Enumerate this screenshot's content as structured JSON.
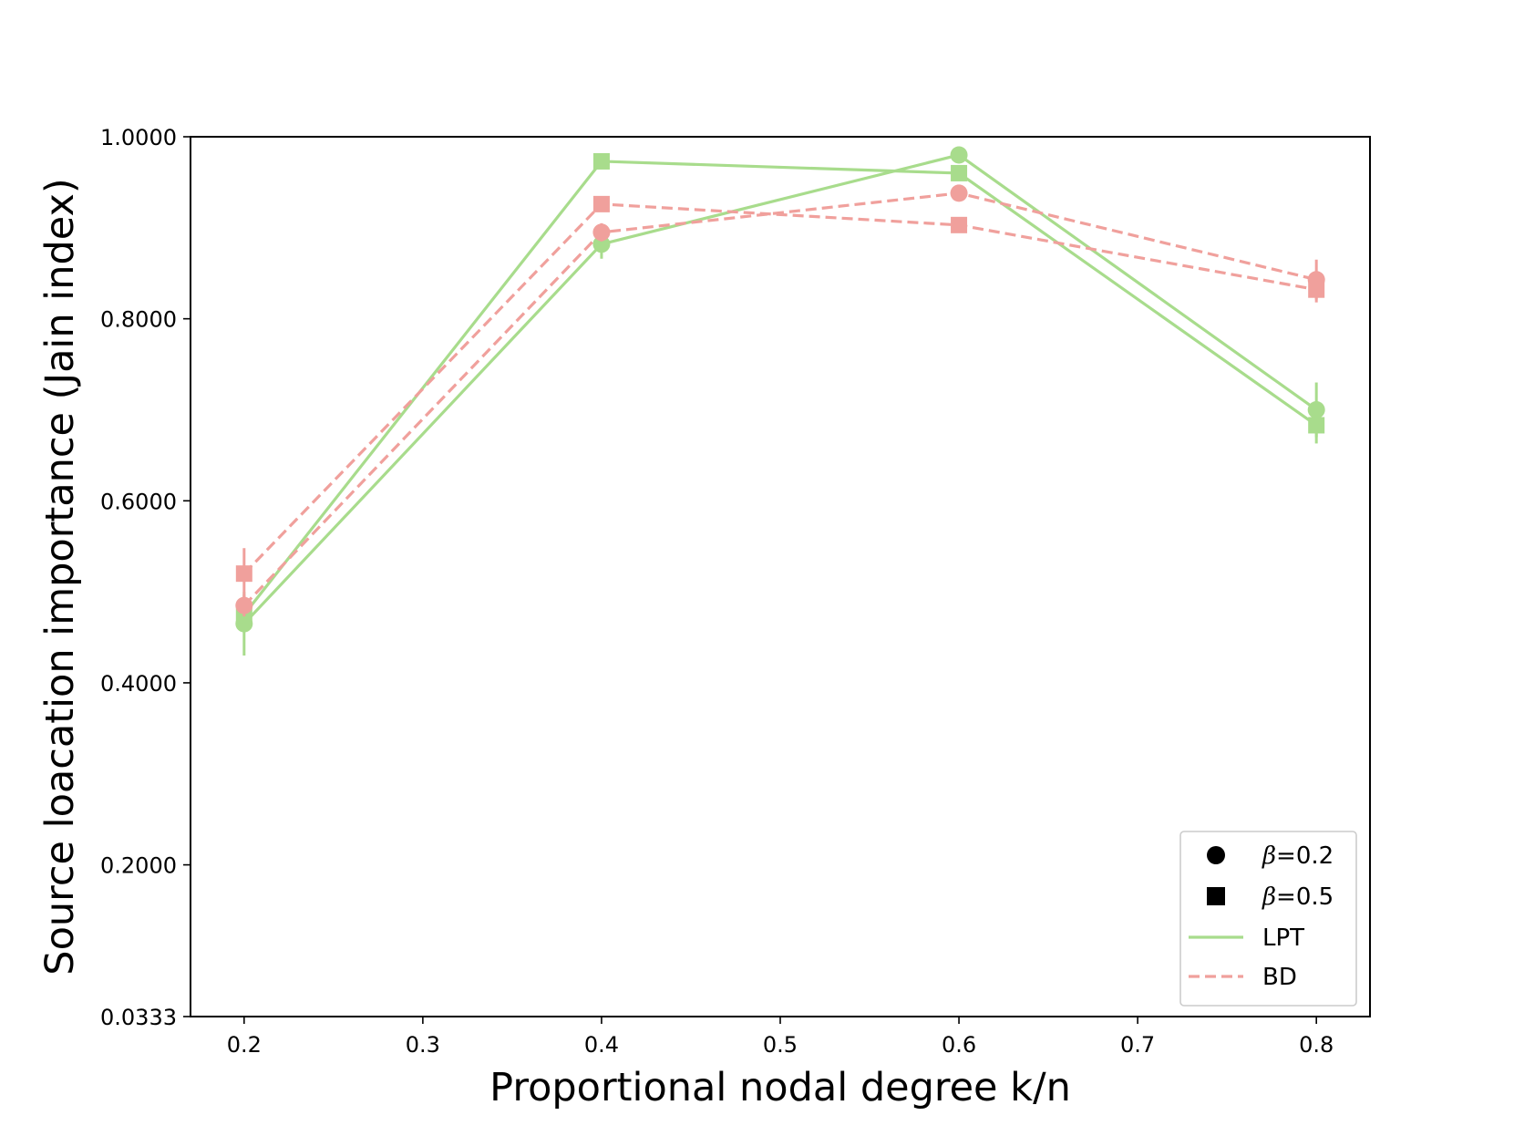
{
  "chart_data": {
    "type": "line",
    "xlabel": "Proportional nodal degree k/n",
    "ylabel": "Source loacation importance (Jain index)",
    "xlim": [
      0.17,
      0.83
    ],
    "ylim": [
      0.0333,
      1.0
    ],
    "xticks": [
      0.2,
      0.3,
      0.4,
      0.5,
      0.6,
      0.7,
      0.8
    ],
    "xtick_labels": [
      "0.2",
      "0.3",
      "0.4",
      "0.5",
      "0.6",
      "0.7",
      "0.8"
    ],
    "yticks": [
      0.0333,
      0.2,
      0.4,
      0.6,
      0.8,
      1.0
    ],
    "ytick_labels": [
      "0.0333",
      "0.2000",
      "0.4000",
      "0.6000",
      "0.8000",
      "1.0000"
    ],
    "grid": false,
    "legend_position": "bottom-right",
    "legend": [
      {
        "label_prefix": "β",
        "label_suffix": "=0.2",
        "kind": "marker",
        "marker": "circle"
      },
      {
        "label_prefix": "β",
        "label_suffix": "=0.5",
        "kind": "marker",
        "marker": "square"
      },
      {
        "label": "LPT",
        "kind": "line",
        "style": "solid"
      },
      {
        "label": "BD",
        "kind": "line",
        "style": "dashed"
      }
    ],
    "colors": {
      "LPT": "#a8dc8c",
      "BD": "#f0a09c"
    },
    "x": [
      0.2,
      0.4,
      0.6,
      0.8
    ],
    "series": [
      {
        "method": "LPT",
        "beta": "0.2",
        "marker": "circle",
        "style": "solid",
        "values": [
          0.465,
          0.882,
          0.98,
          0.7
        ],
        "errors": [
          0.035,
          0.016,
          0.005,
          0.03
        ]
      },
      {
        "method": "LPT",
        "beta": "0.5",
        "marker": "square",
        "style": "solid",
        "values": [
          0.475,
          0.973,
          0.96,
          0.683
        ],
        "errors": [
          0.015,
          0.004,
          0.006,
          0.02
        ]
      },
      {
        "method": "BD",
        "beta": "0.2",
        "marker": "circle",
        "style": "dashed",
        "values": [
          0.485,
          0.895,
          0.938,
          0.843
        ],
        "errors": [
          0.012,
          0.01,
          0.006,
          0.022
        ]
      },
      {
        "method": "BD",
        "beta": "0.5",
        "marker": "square",
        "style": "dashed",
        "values": [
          0.52,
          0.926,
          0.903,
          0.832
        ],
        "errors": [
          0.028,
          0.006,
          0.005,
          0.014
        ]
      }
    ]
  }
}
